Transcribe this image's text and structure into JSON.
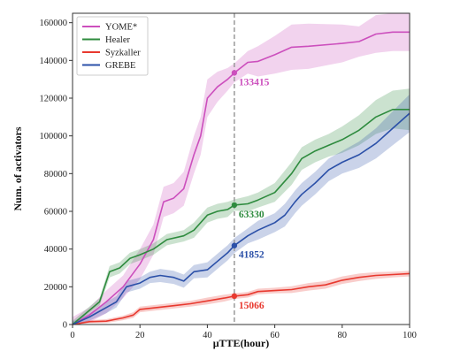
{
  "chart_data": {
    "type": "line",
    "xlabel": "μTTE(hour)",
    "ylabel": "Num. of activators",
    "xlim": [
      0,
      100
    ],
    "ylim": [
      0,
      165000
    ],
    "xticks": [
      0,
      20,
      40,
      60,
      80,
      100
    ],
    "yticks": [
      0,
      20000,
      40000,
      60000,
      80000,
      100000,
      120000,
      140000,
      160000
    ],
    "grid": false,
    "legend_position": "top-left",
    "vline": {
      "x": 48,
      "style": "dashed",
      "color": "#9a9a9a"
    },
    "series": [
      {
        "name": "YOME*",
        "color": "#cc4fbd",
        "x": [
          0,
          5,
          10,
          15,
          20,
          24,
          27,
          30,
          33,
          36,
          38,
          40,
          43,
          46,
          48,
          52,
          55,
          60,
          65,
          70,
          80,
          85,
          90,
          95,
          100
        ],
        "y": [
          0,
          5000,
          12000,
          20000,
          32000,
          45000,
          65000,
          67000,
          72000,
          90000,
          100000,
          120000,
          126000,
          130000,
          133415,
          139000,
          139500,
          143000,
          147000,
          147500,
          149000,
          150000,
          154000,
          155000,
          155000
        ],
        "band": [
          4000,
          4000,
          6000,
          6000,
          8000,
          8000,
          8000,
          8000,
          9000,
          10000,
          10000,
          10000,
          8000,
          6000,
          5000,
          6000,
          8000,
          10000,
          12000,
          12000,
          10000,
          8000,
          10000,
          10000,
          10000
        ]
      },
      {
        "name": "Healer",
        "color": "#2e8b3e",
        "x": [
          0,
          8,
          11,
          14,
          17,
          20,
          24,
          28,
          33,
          36,
          40,
          43,
          46,
          48,
          52,
          55,
          60,
          65,
          68,
          72,
          76,
          80,
          85,
          90,
          95,
          100
        ],
        "y": [
          0,
          12000,
          28000,
          30000,
          35000,
          37000,
          40000,
          45000,
          47000,
          50000,
          58000,
          60000,
          61000,
          63330,
          64000,
          66000,
          70000,
          80000,
          88000,
          92000,
          95000,
          98000,
          103000,
          110000,
          114000,
          114000
        ],
        "band": [
          2000,
          2000,
          3000,
          3000,
          3000,
          3000,
          3000,
          3000,
          3000,
          4000,
          4000,
          4000,
          4000,
          3000,
          4000,
          4000,
          5000,
          6000,
          6000,
          6000,
          6000,
          7000,
          8000,
          9000,
          10000,
          11000
        ]
      },
      {
        "name": "Syzkaller",
        "color": "#e8392f",
        "x": [
          0,
          5,
          10,
          15,
          18,
          20,
          25,
          30,
          35,
          40,
          45,
          48,
          52,
          55,
          60,
          65,
          70,
          75,
          80,
          85,
          90,
          95,
          100
        ],
        "y": [
          0,
          1500,
          1800,
          3500,
          5000,
          8000,
          9000,
          10000,
          11000,
          12500,
          14000,
          15066,
          15800,
          17500,
          18000,
          18500,
          20000,
          21000,
          23500,
          25000,
          26000,
          26500,
          27000
        ],
        "band": [
          500,
          800,
          1000,
          1200,
          1500,
          1500,
          1500,
          1500,
          1500,
          1800,
          1800,
          1500,
          1500,
          1500,
          1500,
          1800,
          2000,
          2000,
          2000,
          2000,
          1800,
          1500,
          1500
        ]
      },
      {
        "name": "GREBE",
        "color": "#2b50a8",
        "x": [
          0,
          5,
          10,
          13,
          16,
          20,
          23,
          26,
          30,
          33,
          36,
          40,
          44,
          46,
          48,
          52,
          55,
          60,
          63,
          66,
          68,
          72,
          76,
          80,
          85,
          90,
          95,
          100
        ],
        "y": [
          0,
          4000,
          9000,
          12000,
          20000,
          22000,
          25000,
          26000,
          25000,
          23000,
          28000,
          29000,
          35000,
          38000,
          41852,
          47000,
          50000,
          54000,
          58000,
          65000,
          69000,
          75000,
          82000,
          86000,
          90000,
          96000,
          104000,
          112000
        ],
        "band": [
          1500,
          2000,
          3000,
          3000,
          3000,
          3000,
          3000,
          3500,
          3500,
          3500,
          3500,
          4000,
          4000,
          4000,
          4000,
          4000,
          5000,
          5000,
          6000,
          6000,
          6000,
          6000,
          6000,
          6000,
          7000,
          8000,
          9000,
          10000
        ]
      }
    ],
    "annotations": [
      {
        "series": "YOME*",
        "x": 48,
        "y": 133415,
        "label": "133415"
      },
      {
        "series": "Healer",
        "x": 48,
        "y": 63330,
        "label": "63330"
      },
      {
        "series": "GREBE",
        "x": 48,
        "y": 41852,
        "label": "41852"
      },
      {
        "series": "Syzkaller",
        "x": 48,
        "y": 15066,
        "label": "15066"
      }
    ]
  }
}
